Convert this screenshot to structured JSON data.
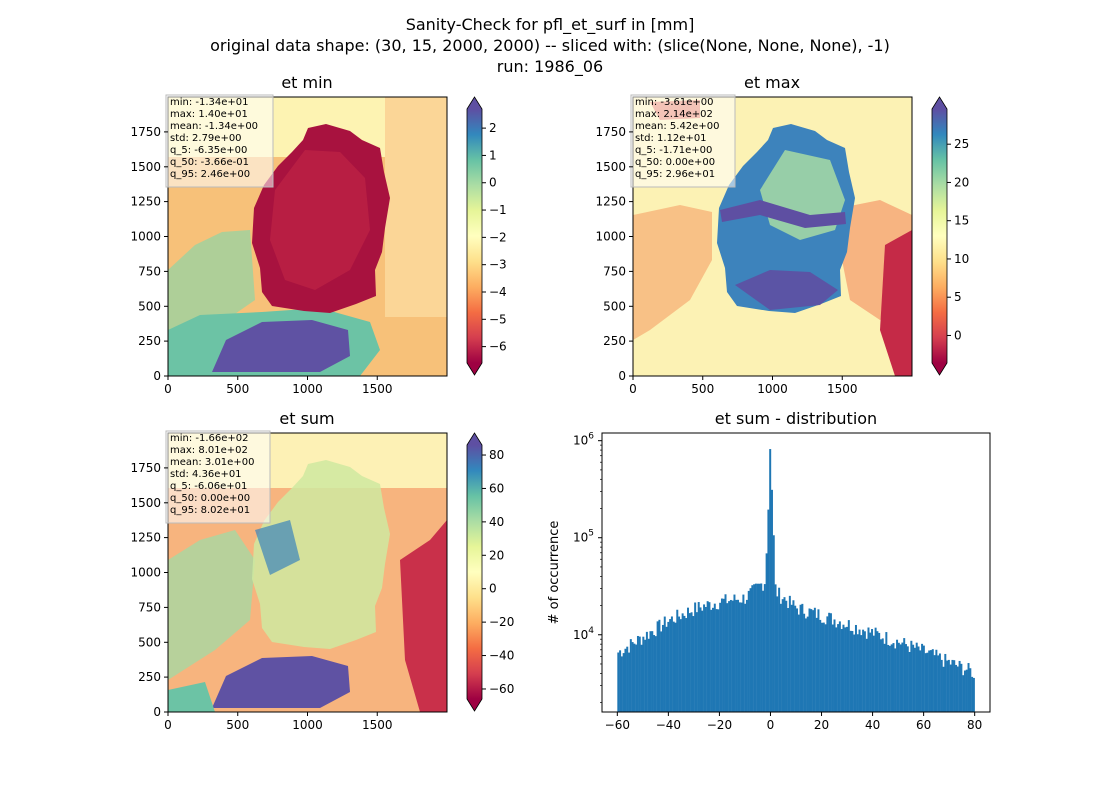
{
  "figure": {
    "title_lines": [
      "Sanity-Check for pfl_et_surf in [mm]",
      "original data shape: (30, 15, 2000, 2000) -- sliced with: (slice(None, None, None), -1)",
      "run: 1986_06"
    ]
  },
  "chart_data": [
    {
      "type": "heatmap",
      "title": "et min",
      "xlim": [
        0,
        2000
      ],
      "ylim": [
        0,
        2000
      ],
      "x_ticks": [
        0,
        500,
        1000,
        1500
      ],
      "y_ticks": [
        0,
        250,
        500,
        750,
        1000,
        1250,
        1500,
        1750
      ],
      "colorbar": {
        "cmap": "Spectral",
        "range": [
          -6.6,
          2.7
        ],
        "ticks": [
          2,
          1,
          0,
          -1,
          -2,
          -3,
          -4,
          -5,
          -6
        ],
        "tick_labels": [
          "2",
          "1",
          "0",
          "−1",
          "−2",
          "−3",
          "−4",
          "−5",
          "−6"
        ],
        "extend": "both"
      },
      "stats": [
        "min: -1.34e+01",
        "max: 1.40e+01",
        "mean: -1.34e+00",
        "std: 2.79e+00",
        "q_5: -6.35e+00",
        "q_50: -3.66e-01",
        "q_95: 2.46e+00"
      ]
    },
    {
      "type": "heatmap",
      "title": "et max",
      "xlim": [
        0,
        2000
      ],
      "ylim": [
        0,
        2000
      ],
      "x_ticks": [
        0,
        500,
        1000,
        1500
      ],
      "y_ticks": [
        0,
        250,
        500,
        750,
        1000,
        1250,
        1500,
        1750
      ],
      "colorbar": {
        "cmap": "Spectral",
        "range": [
          -3.6,
          29.6
        ],
        "ticks": [
          25,
          20,
          15,
          10,
          5,
          0
        ],
        "tick_labels": [
          "25",
          "20",
          "15",
          "10",
          "5",
          "0"
        ],
        "extend": "both"
      },
      "stats": [
        "min: -3.61e+00",
        "max: 2.14e+02",
        "mean: 5.42e+00",
        "std: 1.12e+01",
        "q_5: -1.71e+00",
        "q_50: 0.00e+00",
        "q_95: 2.96e+01"
      ]
    },
    {
      "type": "heatmap",
      "title": "et sum",
      "xlim": [
        0,
        2000
      ],
      "ylim": [
        0,
        2000
      ],
      "x_ticks": [
        0,
        500,
        1000,
        1500
      ],
      "y_ticks": [
        0,
        250,
        500,
        750,
        1000,
        1250,
        1500,
        1750
      ],
      "colorbar": {
        "cmap": "Spectral",
        "range": [
          -66,
          86
        ],
        "ticks": [
          80,
          60,
          40,
          20,
          0,
          -20,
          -40,
          -60
        ],
        "tick_labels": [
          "80",
          "60",
          "40",
          "20",
          "0",
          "−20",
          "−40",
          "−60"
        ],
        "extend": "both"
      },
      "stats": [
        "min: -1.66e+02",
        "max: 8.01e+02",
        "mean: 3.01e+00",
        "std: 4.36e+01",
        "q_5: -6.06e+01",
        "q_50: 0.00e+00",
        "q_95: 8.02e+01"
      ]
    },
    {
      "type": "bar",
      "title": "et sum - distribution",
      "ylabel": "# of occurrence",
      "yscale": "log",
      "xlim": [
        -66,
        86
      ],
      "ylim": [
        1600,
        1200000
      ],
      "x_ticks": [
        -60,
        -40,
        -20,
        0,
        20,
        40,
        60,
        80
      ],
      "x_tick_labels": [
        "−60",
        "−40",
        "−20",
        "0",
        "20",
        "40",
        "60",
        "80"
      ],
      "y_ticks": [
        10000,
        100000,
        1000000
      ],
      "y_tick_labels": [
        [
          "10",
          "4"
        ],
        [
          "10",
          "5"
        ],
        [
          "10",
          "6"
        ]
      ],
      "bin_range": [
        -60,
        80
      ],
      "bin_count": 200,
      "color": "#1f77b4",
      "profile_x": [
        -60,
        -50,
        -40,
        -30,
        -20,
        -10,
        -2,
        0,
        2,
        10,
        20,
        30,
        40,
        50,
        60,
        70,
        79,
        80
      ],
      "profile_y": [
        6500,
        9500,
        14000,
        18500,
        22000,
        24000,
        36000,
        820000,
        28000,
        19000,
        16000,
        13000,
        10500,
        8500,
        6800,
        5200,
        4200,
        3000
      ]
    }
  ]
}
